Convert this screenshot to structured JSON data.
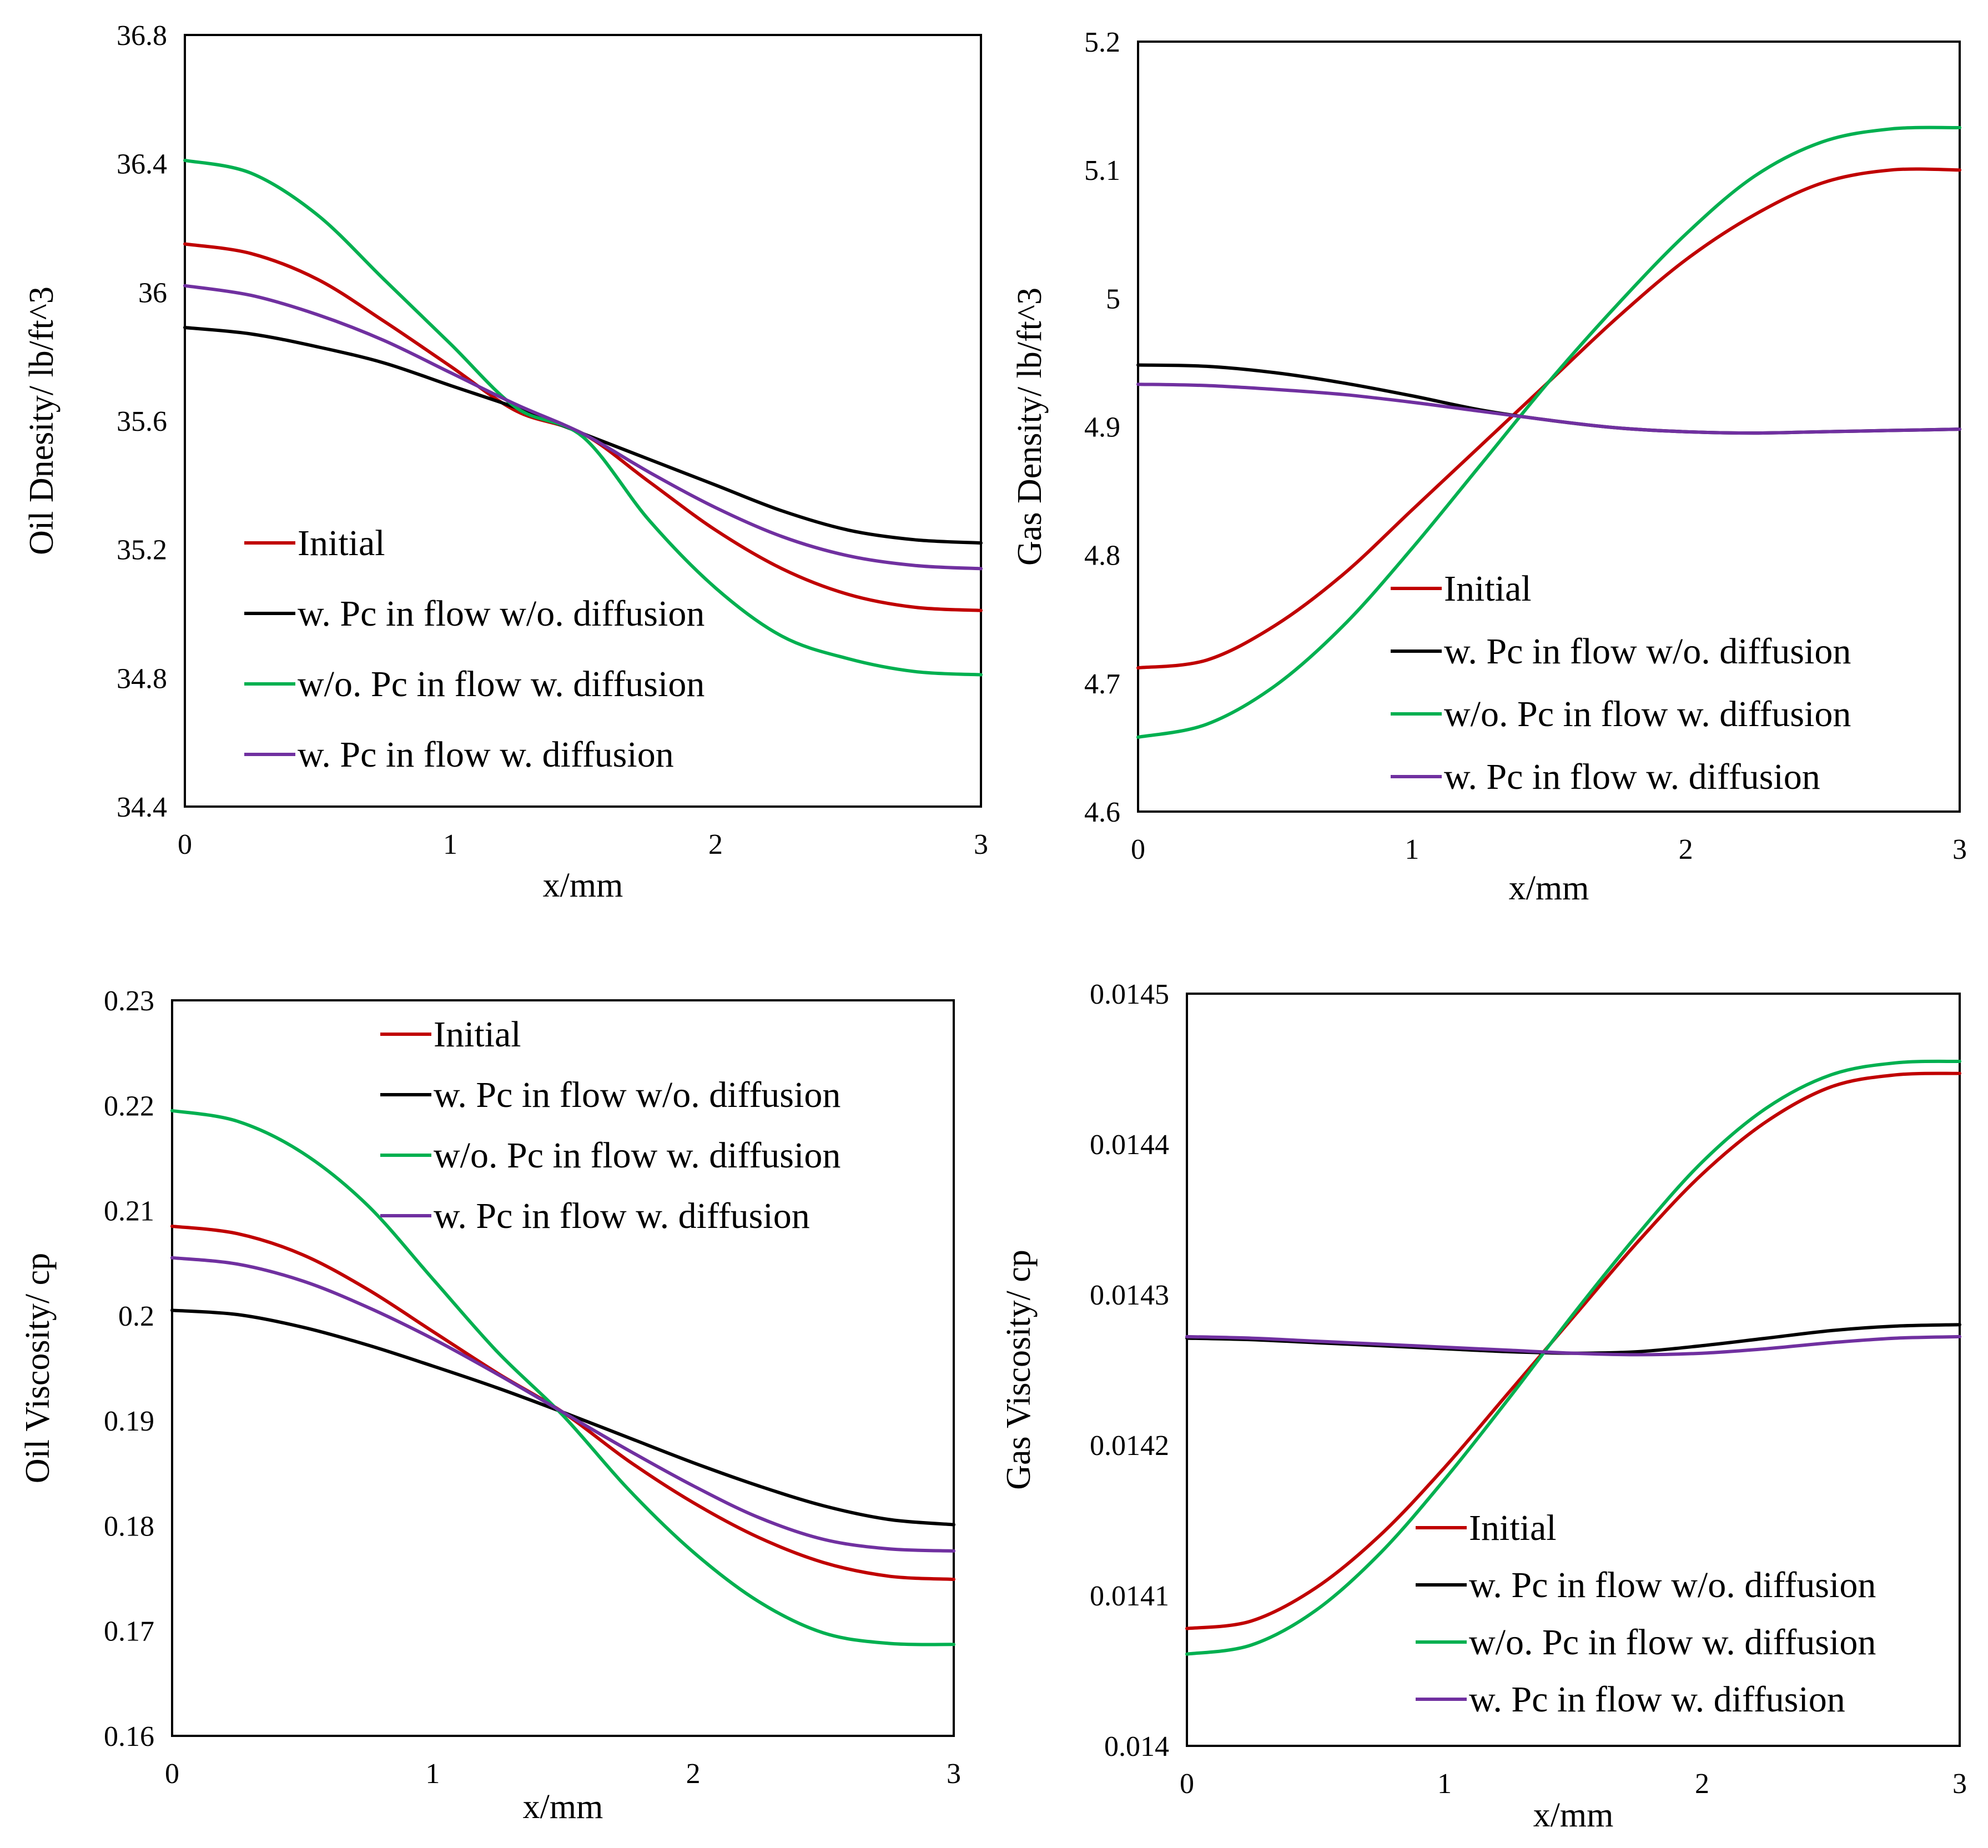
{
  "chart_data": [
    {
      "type": "line",
      "xlabel": "x/mm",
      "ylabel": "Oil Dnesity/ lb/ft^3",
      "xlim": [
        0,
        3
      ],
      "ylim": [
        34.4,
        36.8
      ],
      "xticks": [
        "0",
        "1",
        "2",
        "3"
      ],
      "yticks": [
        "34.4",
        "34.8",
        "35.2",
        "35.6",
        "36",
        "36.4",
        "36.8"
      ],
      "legend_position": "lower-left",
      "series": [
        {
          "name": "Initial",
          "color": "#c00000",
          "x": [
            0,
            0.25,
            0.5,
            0.75,
            1,
            1.25,
            1.5,
            1.75,
            2,
            2.25,
            2.5,
            2.75,
            3
          ],
          "y": [
            36.15,
            36.12,
            36.04,
            35.91,
            35.77,
            35.63,
            35.56,
            35.41,
            35.26,
            35.14,
            35.06,
            35.02,
            35.01
          ]
        },
        {
          "name": "w. Pc in flow  w/o. diffusion",
          "color": "#000000",
          "x": [
            0,
            0.25,
            0.5,
            0.75,
            1,
            1.25,
            1.5,
            1.75,
            2,
            2.25,
            2.5,
            2.75,
            3
          ],
          "y": [
            35.89,
            35.87,
            35.83,
            35.78,
            35.71,
            35.64,
            35.56,
            35.48,
            35.4,
            35.32,
            35.26,
            35.23,
            35.22
          ]
        },
        {
          "name": "w/o. Pc in flow  w. diffusion",
          "color": "#00b050",
          "x": [
            0,
            0.25,
            0.5,
            0.75,
            1,
            1.25,
            1.5,
            1.75,
            2,
            2.25,
            2.5,
            2.75,
            3
          ],
          "y": [
            36.41,
            36.37,
            36.24,
            36.04,
            35.84,
            35.64,
            35.55,
            35.29,
            35.08,
            34.93,
            34.86,
            34.82,
            34.81
          ]
        },
        {
          "name": "w. Pc in flow  w. diffusion",
          "color": "#7030a0",
          "x": [
            0,
            0.25,
            0.5,
            0.75,
            1,
            1.25,
            1.5,
            1.75,
            2,
            2.25,
            2.5,
            2.75,
            3
          ],
          "y": [
            36.02,
            35.99,
            35.93,
            35.85,
            35.75,
            35.65,
            35.56,
            35.44,
            35.33,
            35.24,
            35.18,
            35.15,
            35.14
          ]
        }
      ]
    },
    {
      "type": "line",
      "xlabel": "x/mm",
      "ylabel": "Gas Density/ lb/ft^3",
      "xlim": [
        0,
        3
      ],
      "ylim": [
        4.6,
        5.2
      ],
      "xticks": [
        "0",
        "1",
        "2",
        "3"
      ],
      "yticks": [
        "4.6",
        "4.7",
        "4.8",
        "4.9",
        "5",
        "5.1",
        "5.2"
      ],
      "legend_position": "lower-right",
      "series": [
        {
          "name": "Initial",
          "color": "#c00000",
          "x": [
            0,
            0.25,
            0.5,
            0.75,
            1,
            1.25,
            1.5,
            1.75,
            2,
            2.25,
            2.5,
            2.75,
            3
          ],
          "y": [
            4.712,
            4.718,
            4.745,
            4.785,
            4.835,
            4.885,
            4.935,
            4.985,
            5.03,
            5.065,
            5.09,
            5.1,
            5.1
          ]
        },
        {
          "name": "w. Pc in flow  w/o. diffusion",
          "color": "#000000",
          "x": [
            0,
            0.25,
            0.5,
            0.75,
            1,
            1.25,
            1.5,
            1.75,
            2,
            2.25,
            2.5,
            2.75,
            3
          ],
          "y": [
            4.948,
            4.947,
            4.942,
            4.934,
            4.924,
            4.913,
            4.905,
            4.899,
            4.896,
            4.895,
            4.896,
            4.897,
            4.898
          ]
        },
        {
          "name": "w/o. Pc in flow  w. diffusion",
          "color": "#00b050",
          "x": [
            0,
            0.25,
            0.5,
            0.75,
            1,
            1.25,
            1.5,
            1.75,
            2,
            2.25,
            2.5,
            2.75,
            3
          ],
          "y": [
            4.658,
            4.668,
            4.698,
            4.745,
            4.805,
            4.87,
            4.935,
            4.995,
            5.05,
            5.095,
            5.122,
            5.132,
            5.133
          ]
        },
        {
          "name": "w. Pc in flow  w. diffusion",
          "color": "#7030a0",
          "x": [
            0,
            0.25,
            0.5,
            0.75,
            1,
            1.25,
            1.5,
            1.75,
            2,
            2.25,
            2.5,
            2.75,
            3
          ],
          "y": [
            4.933,
            4.932,
            4.929,
            4.925,
            4.919,
            4.912,
            4.905,
            4.899,
            4.896,
            4.895,
            4.896,
            4.897,
            4.898
          ]
        }
      ]
    },
    {
      "type": "line",
      "xlabel": "x/mm",
      "ylabel": "Oil Viscosity/ cp",
      "xlim": [
        0,
        3
      ],
      "ylim": [
        0.16,
        0.23
      ],
      "xticks": [
        "0",
        "1",
        "2",
        "3"
      ],
      "yticks": [
        "0.16",
        "0.17",
        "0.18",
        "0.19",
        "0.2",
        "0.21",
        "0.22",
        "0.23"
      ],
      "legend_position": "top-right",
      "series": [
        {
          "name": "Initial",
          "color": "#c00000",
          "x": [
            0,
            0.25,
            0.5,
            0.75,
            1,
            1.25,
            1.5,
            1.75,
            2,
            2.25,
            2.5,
            2.75,
            3
          ],
          "y": [
            0.2085,
            0.2078,
            0.2058,
            0.2025,
            0.1985,
            0.1945,
            0.1908,
            0.1862,
            0.1822,
            0.1789,
            0.1765,
            0.1752,
            0.1749
          ]
        },
        {
          "name": "w. Pc in flow  w/o. diffusion",
          "color": "#000000",
          "x": [
            0,
            0.25,
            0.5,
            0.75,
            1,
            1.25,
            1.5,
            1.75,
            2,
            2.25,
            2.5,
            2.75,
            3
          ],
          "y": [
            0.2005,
            0.2001,
            0.1989,
            0.1972,
            0.1952,
            0.1931,
            0.1908,
            0.1884,
            0.186,
            0.1838,
            0.1819,
            0.1806,
            0.1801
          ]
        },
        {
          "name": "w/o. Pc in flow  w. diffusion",
          "color": "#00b050",
          "x": [
            0,
            0.25,
            0.5,
            0.75,
            1,
            1.25,
            1.5,
            1.75,
            2,
            2.25,
            2.5,
            2.75,
            3
          ],
          "y": [
            0.2195,
            0.2185,
            0.2155,
            0.2105,
            0.2035,
            0.1965,
            0.1905,
            0.1835,
            0.1775,
            0.1728,
            0.1698,
            0.1688,
            0.1687
          ]
        },
        {
          "name": "w. Pc in flow  w. diffusion",
          "color": "#7030a0",
          "x": [
            0,
            0.25,
            0.5,
            0.75,
            1,
            1.25,
            1.5,
            1.75,
            2,
            2.25,
            2.5,
            2.75,
            3
          ],
          "y": [
            0.2055,
            0.2049,
            0.2033,
            0.2008,
            0.1978,
            0.1944,
            0.1908,
            0.1872,
            0.1838,
            0.1808,
            0.1787,
            0.1778,
            0.1776
          ]
        }
      ]
    },
    {
      "type": "line",
      "xlabel": "x/mm",
      "ylabel": "Gas Viscosity/ cp",
      "xlim": [
        0,
        3
      ],
      "ylim": [
        0.014,
        0.0145
      ],
      "xticks": [
        "0",
        "1",
        "2",
        "3"
      ],
      "yticks": [
        "0.014",
        "0.0141",
        "0.0142",
        "0.0143",
        "0.0144",
        "0.0145"
      ],
      "legend_position": "lower-right",
      "series": [
        {
          "name": "Initial",
          "color": "#c00000",
          "x": [
            0,
            0.25,
            0.5,
            0.75,
            1,
            1.25,
            1.5,
            1.75,
            2,
            2.25,
            2.5,
            2.75,
            3
          ],
          "y": [
            0.014078,
            0.014083,
            0.014105,
            0.01414,
            0.014185,
            0.014235,
            0.014285,
            0.014335,
            0.01438,
            0.014415,
            0.014438,
            0.014446,
            0.014447
          ]
        },
        {
          "name": "w. Pc in flow  w/o. diffusion",
          "color": "#000000",
          "x": [
            0,
            0.25,
            0.5,
            0.75,
            1,
            1.25,
            1.5,
            1.75,
            2,
            2.25,
            2.5,
            2.75,
            3
          ],
          "y": [
            0.014271,
            0.01427,
            0.014268,
            0.014266,
            0.014264,
            0.014262,
            0.014261,
            0.014262,
            0.014266,
            0.014271,
            0.014276,
            0.014279,
            0.01428
          ]
        },
        {
          "name": "w/o. Pc in flow  w. diffusion",
          "color": "#00b050",
          "x": [
            0,
            0.25,
            0.5,
            0.75,
            1,
            1.25,
            1.5,
            1.75,
            2,
            2.25,
            2.5,
            2.75,
            3
          ],
          "y": [
            0.014061,
            0.014067,
            0.01409,
            0.014128,
            0.014177,
            0.014231,
            0.014287,
            0.01434,
            0.014388,
            0.014424,
            0.014446,
            0.014454,
            0.014455
          ]
        },
        {
          "name": "w. Pc in flow  w. diffusion",
          "color": "#7030a0",
          "x": [
            0,
            0.25,
            0.5,
            0.75,
            1,
            1.25,
            1.5,
            1.75,
            2,
            2.25,
            2.5,
            2.75,
            3
          ],
          "y": [
            0.014272,
            0.014271,
            0.014269,
            0.014267,
            0.014265,
            0.014263,
            0.014261,
            0.01426,
            0.014261,
            0.014264,
            0.014268,
            0.014271,
            0.014272
          ]
        }
      ]
    }
  ]
}
